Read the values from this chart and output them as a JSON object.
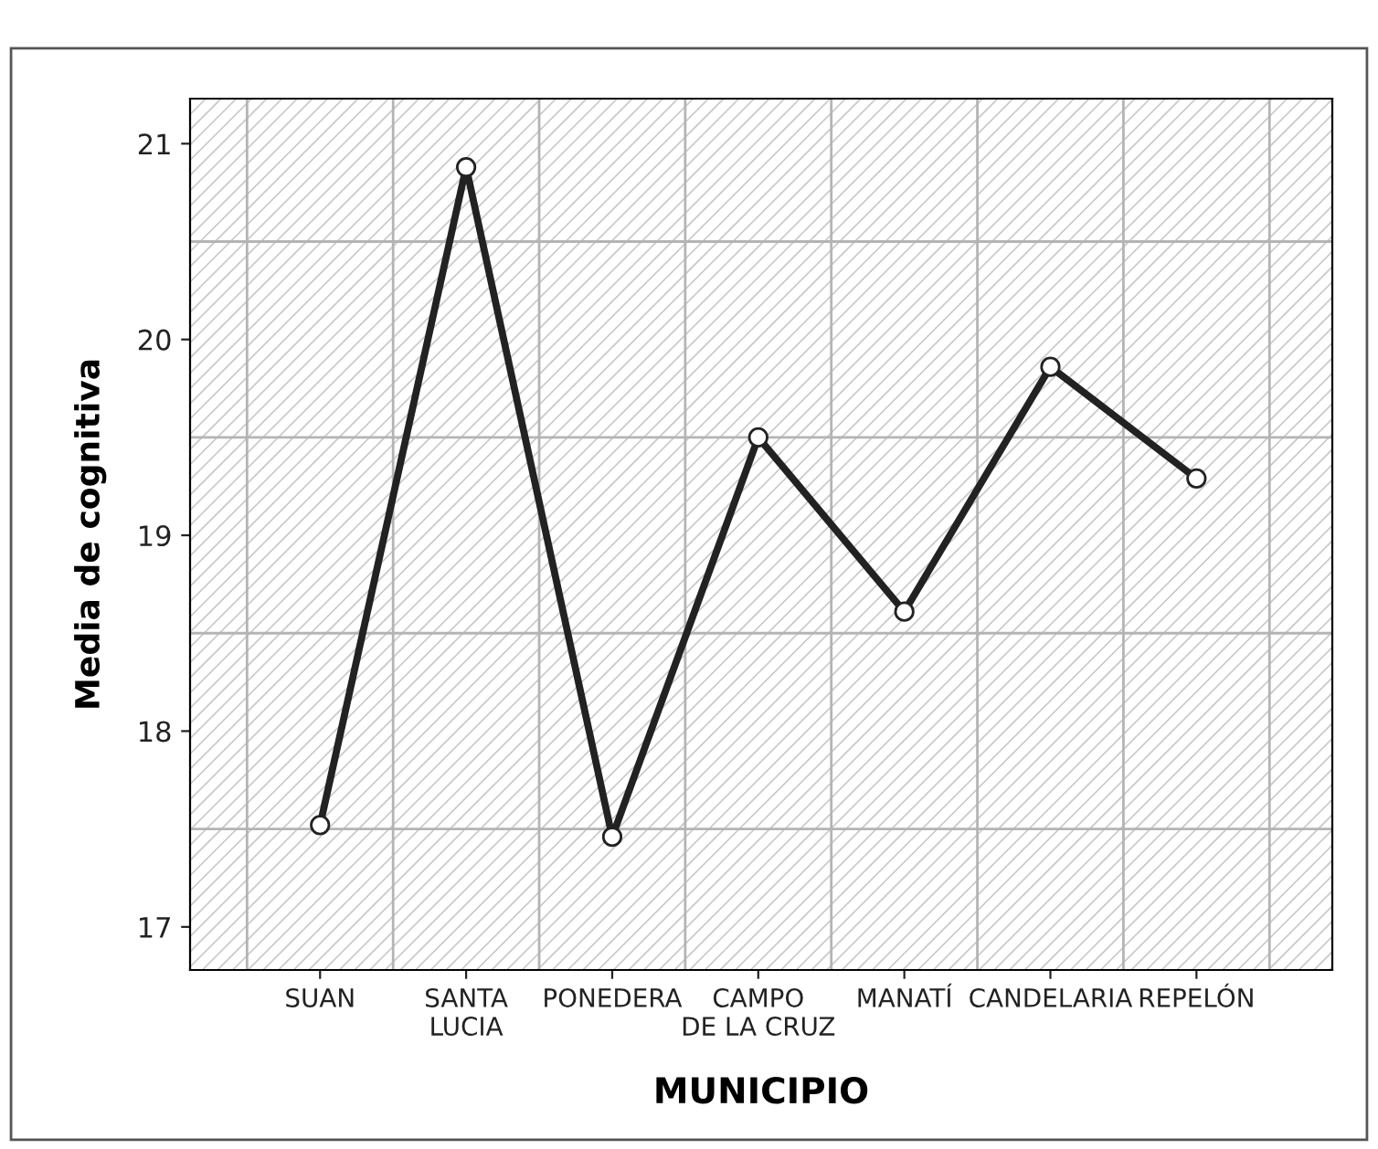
{
  "chart_data": {
    "type": "line",
    "xlabel": "MUNICIPIO",
    "ylabel": "Media de cognitiva",
    "categories": [
      "SUAN",
      "SANTA\nLUCIA",
      "PONEDERA",
      "CAMPO\nDE LA CRUZ",
      "MANATÍ",
      "CANDELARIA",
      "REPELÓN"
    ],
    "series": [
      {
        "color": "#222222",
        "values": [
          17.52,
          20.88,
          17.46,
          19.5,
          18.61,
          19.86,
          19.29
        ]
      }
    ],
    "ylim": [
      16.78,
      21.23
    ],
    "yticks": [
      17,
      18,
      19,
      20,
      21
    ],
    "grid": true,
    "marker": "circle",
    "line_style": "solid"
  }
}
